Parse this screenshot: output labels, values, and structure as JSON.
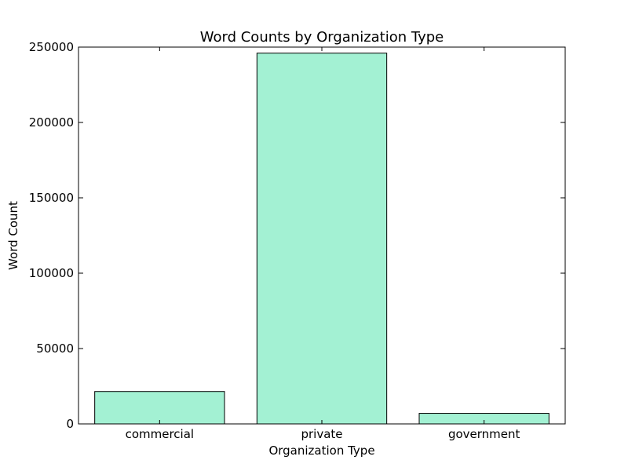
{
  "chart_data": {
    "type": "bar",
    "title": "Word Counts by Organization Type",
    "xlabel": "Organization Type",
    "ylabel": "Word Count",
    "categories": [
      "commercial",
      "private",
      "government"
    ],
    "values": [
      21500,
      246000,
      7000
    ],
    "ylim": [
      0,
      250000
    ],
    "yticks": [
      0,
      50000,
      100000,
      150000,
      200000,
      250000
    ],
    "ytick_labels": [
      "0",
      "50000",
      "100000",
      "150000",
      "200000",
      "250000"
    ],
    "grid": false,
    "bar_color": "#a3f1d3",
    "edge_color": "#000000"
  }
}
